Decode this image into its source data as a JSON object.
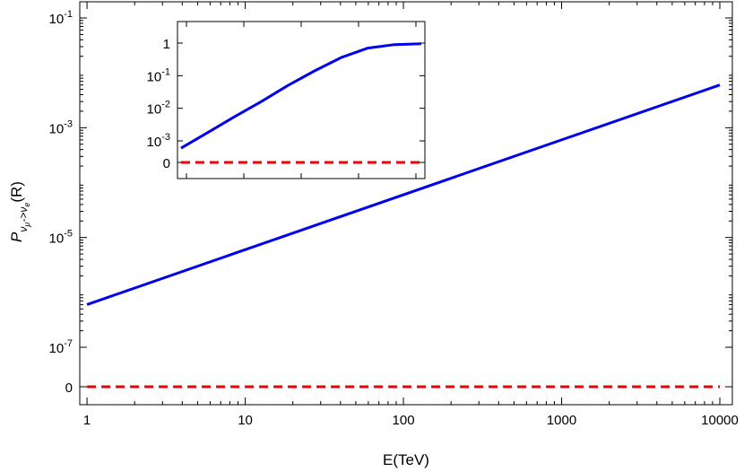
{
  "chart_data": [
    {
      "type": "line",
      "xscale": "log",
      "yscale": "log",
      "xlim": [
        0.9,
        12000
      ],
      "xlabel": "E(TeV)",
      "ylabel": {
        "main": "P",
        "sub_a": "ν",
        "sub_a_sub": "μ",
        "arrow": "->",
        "sub_b": "ν",
        "sub_b_sub": "e",
        "suffix": "(R)"
      },
      "xticks": [
        {
          "value": 1,
          "label": "1"
        },
        {
          "value": 10,
          "label": "10"
        },
        {
          "value": 100,
          "label": "100"
        },
        {
          "value": 1000,
          "label": "1000"
        },
        {
          "value": 10000,
          "label": "10000"
        }
      ],
      "yticks": [
        {
          "base": "0",
          "exp": "",
          "y": 0
        },
        {
          "base": "10",
          "exp": "-7",
          "y": 1e-07
        },
        {
          "base": "10",
          "exp": "-5",
          "y": 1e-05
        },
        {
          "base": "10",
          "exp": "-3",
          "y": 0.001
        },
        {
          "base": "10",
          "exp": "-1",
          "y": 0.1
        }
      ],
      "series": [
        {
          "color": "#0000ee",
          "style": "solid",
          "x": [
            1,
            10000
          ],
          "y": [
            6e-07,
            0.006
          ]
        },
        {
          "color": "#e8000b",
          "style": "dashed",
          "x": [
            1,
            10000
          ],
          "y": [
            0,
            0
          ]
        }
      ],
      "grid": false,
      "legend": "none"
    },
    {
      "type": "line",
      "inset": true,
      "xscale": "log",
      "yticks": [
        {
          "base": "0",
          "exp": "",
          "y": 0
        },
        {
          "base": "10",
          "exp": "-3",
          "y": 0.001
        },
        {
          "base": "10",
          "exp": "-2",
          "y": 0.01
        },
        {
          "base": "10",
          "exp": "-1",
          "y": 0.1
        },
        {
          "base": "1",
          "exp": "",
          "y": 1
        }
      ],
      "series": [
        {
          "color": "#0000ee",
          "style": "solid",
          "y": [
            0.0006,
            0.0018,
            0.0055,
            0.016,
            0.05,
            0.14,
            0.36,
            0.7,
            0.9,
            0.95
          ]
        },
        {
          "color": "#e8000b",
          "style": "dashed",
          "y": [
            0,
            0
          ]
        }
      ],
      "grid": false,
      "legend": "none"
    }
  ]
}
